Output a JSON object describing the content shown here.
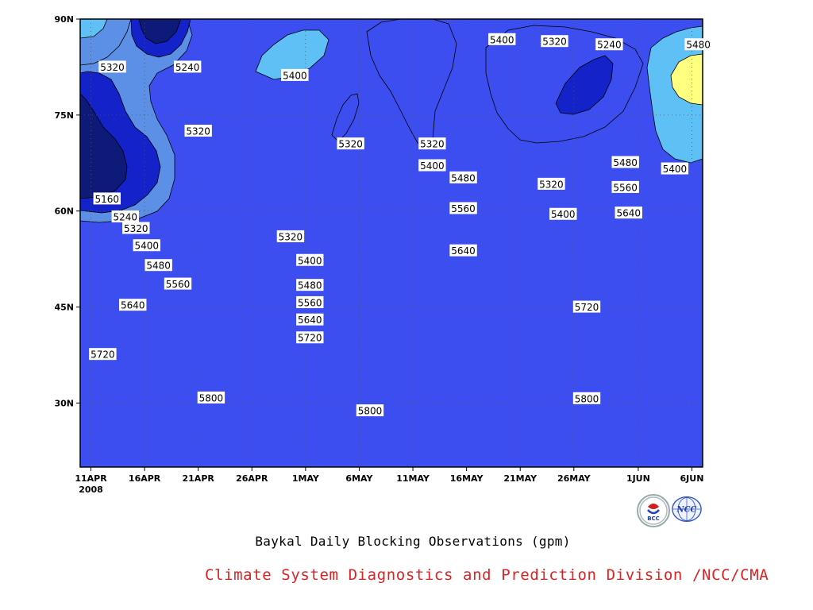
{
  "chart_data": {
    "type": "heatmap",
    "title": "Baykal Daily Blocking Observations (gpm)",
    "subtitle_credit": "Climate System Diagnostics and Prediction Division /NCC/CMA",
    "x_axis": {
      "tick_labels": [
        "11APR",
        "16APR",
        "21APR",
        "26APR",
        "1MAY",
        "6MAY",
        "11MAY",
        "16MAY",
        "21MAY",
        "26MAY",
        "1JUN",
        "6JUN"
      ],
      "tick_days": [
        0,
        5,
        10,
        15,
        20,
        25,
        30,
        35,
        40,
        45,
        51,
        56
      ],
      "start_year_label": "2008",
      "range_days": [
        -1,
        57
      ]
    },
    "y_axis": {
      "tick_labels": [
        "30N",
        "45N",
        "60N",
        "75N",
        "90N"
      ],
      "tick_values": [
        30,
        45,
        60,
        75,
        90
      ],
      "range": [
        20,
        90
      ]
    },
    "grid": "dotted",
    "contour_levels": [
      5160,
      5240,
      5320,
      5400,
      5480,
      5560,
      5640,
      5720,
      5800
    ],
    "fill_colors": {
      "below_5160": "#0e1a78",
      "5160_5240": "#1423c9",
      "5240_5320": "#3d4ef0",
      "5320_5400": "#5c8fe6",
      "5400_5480": "#5fc0f5",
      "5480_5560": "#ffff80",
      "5560_5640": "#ffe0a0",
      "5640_5720": "#ffa063",
      "5720_5800": "#ff7845",
      "above_5800": "#f5707a"
    },
    "contour_labels": [
      {
        "value": "5320",
        "day": 2,
        "lat": 82.5
      },
      {
        "value": "5240",
        "day": 9,
        "lat": 82.5
      },
      {
        "value": "5400",
        "day": 19,
        "lat": 81.2
      },
      {
        "value": "5320",
        "day": 10,
        "lat": 72.5
      },
      {
        "value": "5320",
        "day": 24.2,
        "lat": 70.5
      },
      {
        "value": "5320",
        "day": 31.8,
        "lat": 70.5
      },
      {
        "value": "5400",
        "day": 38.3,
        "lat": 86.8
      },
      {
        "value": "5320",
        "day": 43.2,
        "lat": 86.5
      },
      {
        "value": "5240",
        "day": 48.3,
        "lat": 86.0
      },
      {
        "value": "5480",
        "day": 56.6,
        "lat": 86.0
      },
      {
        "value": "5160",
        "day": 1.5,
        "lat": 61.9
      },
      {
        "value": "5240",
        "day": 3.2,
        "lat": 59.1
      },
      {
        "value": "5320",
        "day": 4.2,
        "lat": 57.3
      },
      {
        "value": "5400",
        "day": 5.2,
        "lat": 54.6
      },
      {
        "value": "5480",
        "day": 6.3,
        "lat": 51.5
      },
      {
        "value": "5560",
        "day": 8.1,
        "lat": 48.6
      },
      {
        "value": "5640",
        "day": 3.9,
        "lat": 45.3
      },
      {
        "value": "5720",
        "day": 1.1,
        "lat": 37.6
      },
      {
        "value": "5800",
        "day": 11.2,
        "lat": 30.8
      },
      {
        "value": "5400",
        "day": 31.8,
        "lat": 67.1
      },
      {
        "value": "5480",
        "day": 34.7,
        "lat": 65.2
      },
      {
        "value": "5560",
        "day": 34.7,
        "lat": 60.4
      },
      {
        "value": "5640",
        "day": 34.7,
        "lat": 53.8
      },
      {
        "value": "5320",
        "day": 42.9,
        "lat": 64.2
      },
      {
        "value": "5400",
        "day": 44.0,
        "lat": 59.5
      },
      {
        "value": "5480",
        "day": 49.8,
        "lat": 67.6
      },
      {
        "value": "5400",
        "day": 54.4,
        "lat": 66.6
      },
      {
        "value": "5560",
        "day": 49.8,
        "lat": 63.7
      },
      {
        "value": "5640",
        "day": 50.1,
        "lat": 59.7
      },
      {
        "value": "5320",
        "day": 18.6,
        "lat": 56.0
      },
      {
        "value": "5400",
        "day": 20.4,
        "lat": 52.3
      },
      {
        "value": "5480",
        "day": 20.4,
        "lat": 48.4
      },
      {
        "value": "5560",
        "day": 20.4,
        "lat": 45.7
      },
      {
        "value": "5640",
        "day": 20.4,
        "lat": 43.0
      },
      {
        "value": "5720",
        "day": 20.4,
        "lat": 40.2
      },
      {
        "value": "5800",
        "day": 26.0,
        "lat": 28.8
      },
      {
        "value": "5720",
        "day": 46.2,
        "lat": 45.0
      },
      {
        "value": "5800",
        "day": 46.2,
        "lat": 30.7
      }
    ]
  },
  "logos": {
    "bcc": {
      "text": "BCC"
    },
    "ncc": {
      "text": "NCC"
    }
  }
}
